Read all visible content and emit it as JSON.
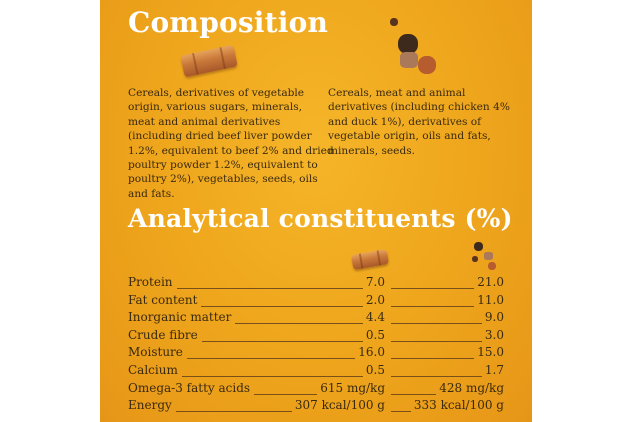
{
  "composition": {
    "heading": "Composition",
    "sticks_lines": [
      "Cereals, derivatives of vegetable",
      "origin, various sugars, minerals,",
      "meat and animal derivatives",
      "(including dried beef liver powder",
      "1.2%, equivalent to beef 2% and dried",
      "poultry powder 1.2%, equivalent to",
      "poultry 2%), vegetables, seeds, oils",
      "and fats."
    ],
    "kibble_lines": [
      "Cereals, meat and animal",
      "derivatives (including chicken 4%",
      "and duck 1%), derivatives of",
      "vegetable origin, oils and fats,",
      "minerals, seeds."
    ]
  },
  "analytical": {
    "heading": "Analytical constituents (%)",
    "rows": [
      {
        "label": "Protein",
        "sticks": "7.0",
        "kibble": "21.0"
      },
      {
        "label": "Fat content",
        "sticks": "2.0",
        "kibble": "11.0"
      },
      {
        "label": "Inorganic matter",
        "sticks": "4.4",
        "kibble": "9.0"
      },
      {
        "label": "Crude fibre",
        "sticks": "0.5",
        "kibble": "3.0"
      },
      {
        "label": "Moisture",
        "sticks": "16.0",
        "kibble": "15.0"
      },
      {
        "label": "Calcium",
        "sticks": "0.5",
        "kibble": "1.7"
      },
      {
        "label": "Omega-3 fatty acids",
        "sticks": "615 mg/kg",
        "kibble": "428 mg/kg"
      },
      {
        "label": "Energy",
        "sticks": "307 kcal/100 g",
        "kibble": "333 kcal/100 g"
      }
    ]
  },
  "icons": {
    "sticks": "dental-stick-icon",
    "kibble": "kibble-pieces-icon"
  },
  "colors": {
    "panel": "#eea51c",
    "heading": "#ffffff",
    "text": "#3a2a10"
  }
}
